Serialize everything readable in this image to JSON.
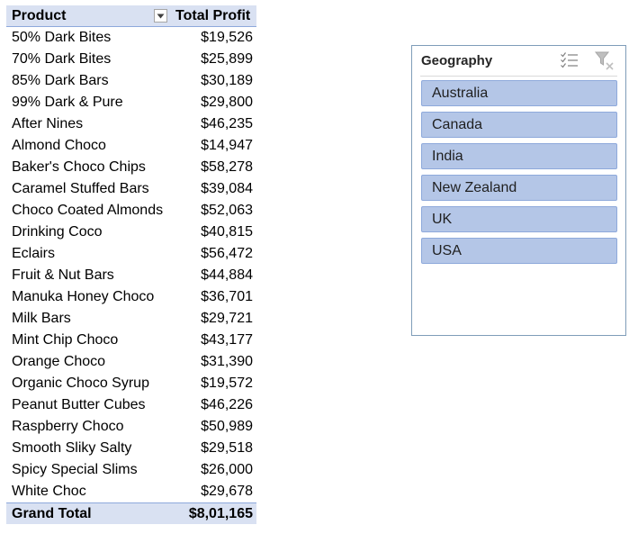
{
  "pivot": {
    "header": {
      "product": "Product",
      "profit": "Total Profit"
    },
    "rows": [
      {
        "product": "50% Dark Bites",
        "profit": "$19,526"
      },
      {
        "product": "70% Dark Bites",
        "profit": "$25,899"
      },
      {
        "product": "85% Dark Bars",
        "profit": "$30,189"
      },
      {
        "product": "99% Dark & Pure",
        "profit": "$29,800"
      },
      {
        "product": "After Nines",
        "profit": "$46,235"
      },
      {
        "product": "Almond Choco",
        "profit": "$14,947"
      },
      {
        "product": "Baker's Choco Chips",
        "profit": "$58,278"
      },
      {
        "product": "Caramel Stuffed Bars",
        "profit": "$39,084"
      },
      {
        "product": "Choco Coated Almonds",
        "profit": "$52,063"
      },
      {
        "product": "Drinking Coco",
        "profit": "$40,815"
      },
      {
        "product": "Eclairs",
        "profit": "$56,472"
      },
      {
        "product": "Fruit & Nut Bars",
        "profit": "$44,884"
      },
      {
        "product": "Manuka Honey Choco",
        "profit": "$36,701"
      },
      {
        "product": "Milk Bars",
        "profit": "$29,721"
      },
      {
        "product": "Mint Chip Choco",
        "profit": "$43,177"
      },
      {
        "product": "Orange Choco",
        "profit": "$31,390"
      },
      {
        "product": "Organic Choco Syrup",
        "profit": "$19,572"
      },
      {
        "product": "Peanut Butter Cubes",
        "profit": "$46,226"
      },
      {
        "product": "Raspberry Choco",
        "profit": "$50,989"
      },
      {
        "product": "Smooth Sliky Salty",
        "profit": "$29,518"
      },
      {
        "product": "Spicy Special Slims",
        "profit": "$26,000"
      },
      {
        "product": "White Choc",
        "profit": "$29,678"
      }
    ],
    "grand_total": {
      "label": "Grand Total",
      "profit": "$8,01,165"
    }
  },
  "slicer": {
    "title": "Geography",
    "icons": [
      "multi-select-icon",
      "clear-filter-icon"
    ],
    "items": [
      "Australia",
      "Canada",
      "India",
      "New Zealand",
      "UK",
      "USA"
    ]
  },
  "colors": {
    "header_fill": "#d9e1f2",
    "header_rule": "#8ea9db",
    "slicer_item_fill": "#b4c6e7",
    "slicer_border": "#7f9db9"
  }
}
